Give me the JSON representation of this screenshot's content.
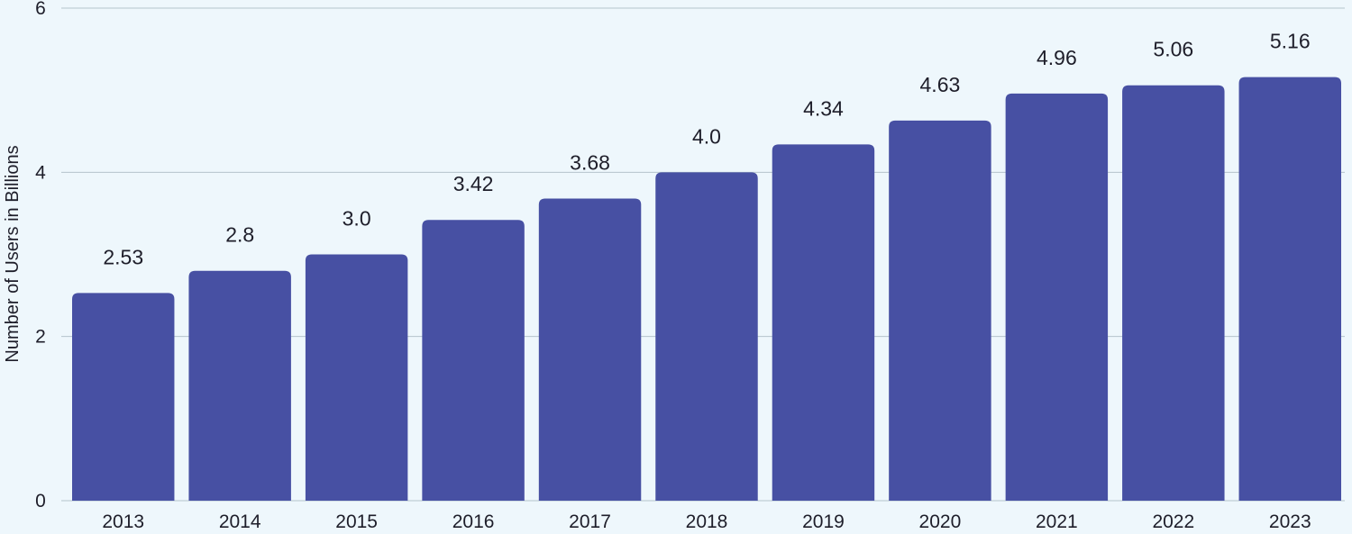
{
  "chart_data": {
    "type": "bar",
    "title": "",
    "xlabel": "",
    "ylabel": "Number of Users in Billions",
    "categories": [
      "2013",
      "2014",
      "2015",
      "2016",
      "2017",
      "2018",
      "2019",
      "2020",
      "2021",
      "2022",
      "2023"
    ],
    "values": [
      2.53,
      2.8,
      3.0,
      3.42,
      3.68,
      4.0,
      4.34,
      4.63,
      4.96,
      5.06,
      5.16
    ],
    "value_labels": [
      "2.53",
      "2.8",
      "3.0",
      "3.42",
      "3.68",
      "4.0",
      "4.34",
      "4.63",
      "4.96",
      "5.06",
      "5.16"
    ],
    "ylim": [
      0,
      6
    ],
    "yticks": [
      0,
      2,
      4,
      6
    ],
    "grid": true,
    "legend": "none",
    "colors": {
      "bar": "#4750a3",
      "gridline": "#b4c4cc",
      "background": "#eef7fc"
    }
  }
}
